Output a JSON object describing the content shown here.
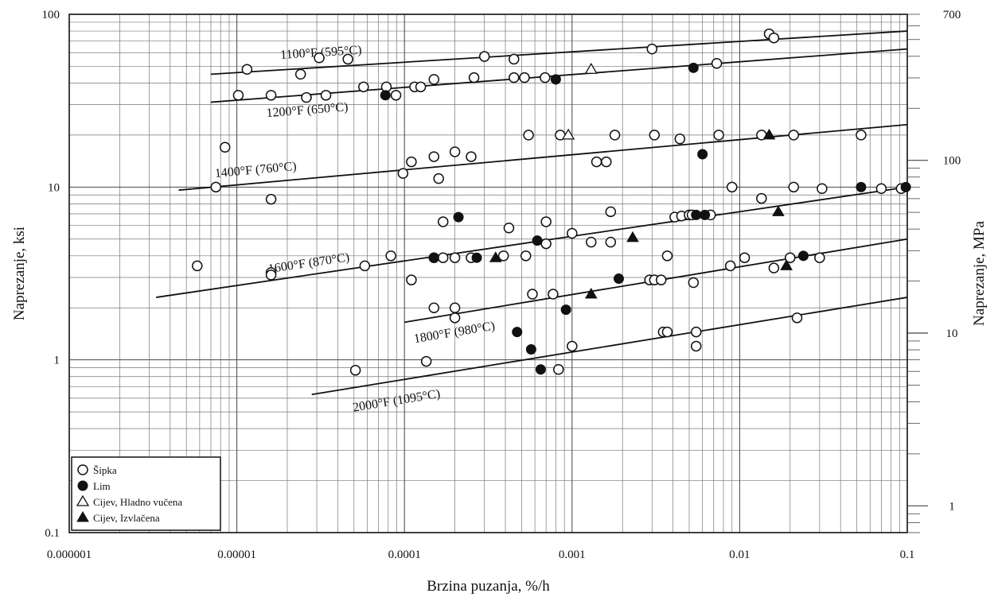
{
  "chart_data": {
    "type": "scatter",
    "xscale": "log",
    "yscale": "log",
    "xlim": [
      1e-06,
      0.1
    ],
    "ylim": [
      0.1,
      100
    ],
    "y2lim_mpa": [
      0.7,
      700
    ],
    "xlabel": "Brzina puzanja, %/h",
    "ylabel": "Naprezanje, ksi",
    "y2label": "Naprezanje, MPa",
    "grid": true,
    "legend_position": "bottom-left",
    "x_ticks": [
      {
        "value": 1e-06,
        "label": "0.000001"
      },
      {
        "value": 1e-05,
        "label": "0.00001"
      },
      {
        "value": 0.0001,
        "label": "0.0001"
      },
      {
        "value": 0.001,
        "label": "0.001"
      },
      {
        "value": 0.01,
        "label": "0.01"
      },
      {
        "value": 0.1,
        "label": "0.1"
      }
    ],
    "y_ticks": [
      {
        "value": 0.1,
        "label": "0.1"
      },
      {
        "value": 1,
        "label": "1"
      },
      {
        "value": 10,
        "label": "10"
      },
      {
        "value": 100,
        "label": "100"
      }
    ],
    "y2_ticks": [
      {
        "value": 1,
        "label": "1"
      },
      {
        "value": 10,
        "label": "10"
      },
      {
        "value": 100,
        "label": "100"
      },
      {
        "value": 700,
        "label": "700"
      }
    ],
    "trend_lines": [
      {
        "label": "1100°F (595°C)",
        "x": [
          7e-06,
          0.1
        ],
        "y": [
          45,
          80
        ]
      },
      {
        "label": "1200°F (650°C)",
        "x": [
          7e-06,
          0.1
        ],
        "y": [
          31,
          63
        ]
      },
      {
        "label": "1400°F (760°C)",
        "x": [
          4.5e-06,
          0.1
        ],
        "y": [
          9.6,
          23
        ]
      },
      {
        "label": "1600°F (870°C)",
        "x": [
          3.3e-06,
          0.1
        ],
        "y": [
          2.3,
          10
        ]
      },
      {
        "label": "1800°F (980°C)",
        "x": [
          0.0001,
          0.1
        ],
        "y": [
          1.65,
          5
        ]
      },
      {
        "label": "2000°F (1095°C)",
        "x": [
          2.8e-05,
          0.1
        ],
        "y": [
          0.63,
          2.3
        ]
      }
    ],
    "series": [
      {
        "name": "Šipka",
        "marker": "open-circle",
        "x": [
          1.15e-05,
          4.6e-05,
          3.1e-05,
          0.0003,
          0.00045,
          0.003,
          0.015,
          0.016,
          1.02e-05,
          1.6e-05,
          2.4e-05,
          2.6e-05,
          3.4e-05,
          5.7e-05,
          7.8e-05,
          8.9e-05,
          0.000115,
          0.000125,
          0.00015,
          0.00026,
          0.00045,
          0.00052,
          0.00069,
          0.0073,
          0.00055,
          0.00085,
          8.5e-06,
          9.8e-05,
          0.00011,
          0.00015,
          0.0002,
          0.00025,
          0.0016,
          0.0018,
          0.0031,
          0.0044,
          0.0075,
          0.0135,
          0.021,
          0.053,
          0.00016,
          0.0014,
          7.5e-06,
          1.6e-05,
          1.6e-05,
          0.00017,
          0.00042,
          0.0007,
          0.0017,
          0.001,
          0.0007,
          0.0041,
          0.0045,
          0.005,
          0.0052,
          0.0067,
          0.009,
          0.0135,
          0.021,
          0.031,
          0.07,
          0.092,
          5.8e-06,
          1.6e-05,
          5.8e-05,
          8.3e-05,
          0.00011,
          0.00015,
          0.00017,
          0.0002,
          0.00025,
          0.00039,
          0.00053,
          0.0013,
          0.0017,
          0.0029,
          0.0031,
          0.0034,
          0.0037,
          0.0053,
          0.0088,
          0.0107,
          0.016,
          0.02,
          0.03,
          0.00015,
          0.0002,
          0.0002,
          0.00058,
          0.00077,
          0.0035,
          0.0037,
          0.0055,
          0.001,
          0.0055,
          5.1e-05,
          0.000135,
          0.00083,
          0.022
        ],
        "y": [
          48,
          55,
          56,
          57,
          55,
          63,
          77,
          73,
          34,
          34,
          45,
          33,
          34,
          38,
          38,
          34,
          38,
          38,
          42,
          43,
          43,
          43,
          43,
          52,
          20,
          20,
          17,
          12,
          14,
          15,
          16,
          15,
          14,
          20,
          20,
          19,
          20,
          20,
          20,
          20,
          11.2,
          14,
          10,
          8.5,
          3.2,
          6.3,
          5.8,
          6.3,
          7.2,
          5.4,
          4.7,
          6.7,
          6.8,
          6.9,
          6.9,
          6.9,
          10,
          8.6,
          10,
          9.8,
          9.8,
          9.8,
          3.5,
          3.1,
          3.5,
          4,
          2.9,
          3.9,
          3.9,
          3.9,
          3.9,
          4,
          4,
          4.8,
          4.8,
          2.9,
          2.9,
          2.9,
          4,
          2.8,
          3.5,
          3.9,
          3.4,
          3.9,
          3.9,
          2,
          2,
          1.75,
          2.4,
          2.4,
          1.45,
          1.45,
          1.45,
          1.2,
          1.2,
          0.87,
          0.98,
          0.88,
          1.75
        ]
      },
      {
        "name": "Lim",
        "marker": "filled-circle",
        "x": [
          7.7e-05,
          0.0008,
          0.0053,
          0.006,
          0.00021,
          0.00062,
          0.00015,
          0.00027,
          0.0055,
          0.0062,
          0.053,
          0.098,
          0.0019,
          0.024,
          0.00092,
          0.00047,
          0.00057,
          0.00065
        ],
        "y": [
          34,
          42,
          49,
          15.5,
          6.7,
          4.9,
          3.9,
          3.9,
          6.9,
          6.9,
          10,
          10,
          2.95,
          4,
          1.95,
          1.45,
          1.15,
          0.88
        ]
      },
      {
        "name": "Cijev, Hladno vučena",
        "marker": "open-triangle",
        "x": [
          0.0013,
          0.00095
        ],
        "y": [
          48,
          20
        ]
      },
      {
        "name": "Cijev, Izvlačena",
        "marker": "filled-triangle",
        "x": [
          0.015,
          0.0023,
          0.00035,
          0.017,
          0.019,
          0.0013
        ],
        "y": [
          20,
          5.1,
          3.9,
          7.2,
          3.5,
          2.4
        ]
      }
    ]
  }
}
